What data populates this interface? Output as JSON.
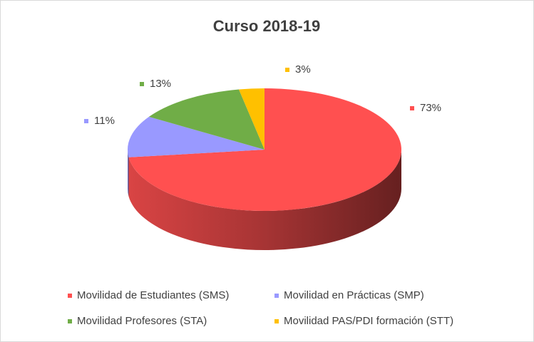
{
  "chart_data": {
    "type": "pie",
    "title": "Curso 2018-19",
    "categories": [
      "Movilidad de Estudiantes (SMS)",
      "Movilidad en Prácticas (SMP)",
      "Movilidad Profesores (STA)",
      "Movilidad PAS/PDI formación (STT)"
    ],
    "values": [
      73,
      11,
      13,
      3
    ],
    "value_labels": [
      "73%",
      "11%",
      "13%",
      "3%"
    ],
    "colors": [
      "#ff5050",
      "#9999ff",
      "#70ad47",
      "#ffc000"
    ]
  }
}
